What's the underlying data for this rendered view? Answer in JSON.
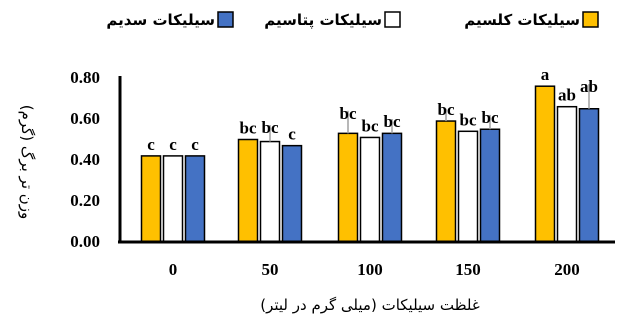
{
  "chart_data": {
    "type": "bar",
    "xlabel": "غلظت سیلیکات (میلی گرم در لیتر)",
    "ylabel": "وزن تر برگ (گرم)",
    "categories": [
      "0",
      "50",
      "100",
      "150",
      "200"
    ],
    "ylim": [
      0,
      0.8
    ],
    "yticks": [
      "0.00",
      "0.20",
      "0.40",
      "0.60",
      "0.80"
    ],
    "grid": false,
    "legend_position": "top",
    "series": [
      {
        "name": "سیلیکات کلسیم",
        "color": "#FFC000",
        "values": [
          0.42,
          0.5,
          0.53,
          0.59,
          0.76
        ],
        "errors": [
          0.0,
          0.0,
          0.11,
          0.06,
          0.0
        ],
        "letters": [
          "c",
          "bc",
          "bc",
          "bc",
          "a"
        ]
      },
      {
        "name": "سیلیکات پتاسیم",
        "color": "#FFFFFF",
        "values": [
          0.42,
          0.49,
          0.51,
          0.54,
          0.66
        ],
        "errors": [
          0.0,
          0.08,
          0.0,
          0.0,
          0.0
        ],
        "letters": [
          "c",
          "bc",
          "bc",
          "bc",
          "ab"
        ]
      },
      {
        "name": "سیلیکات سدیم",
        "color": "#4472C4",
        "values": [
          0.42,
          0.47,
          0.53,
          0.55,
          0.65
        ],
        "errors": [
          0.0,
          0.0,
          0.07,
          0.07,
          0.12
        ],
        "letters": [
          "c",
          "c",
          "bc",
          "bc",
          "ab"
        ]
      }
    ]
  }
}
